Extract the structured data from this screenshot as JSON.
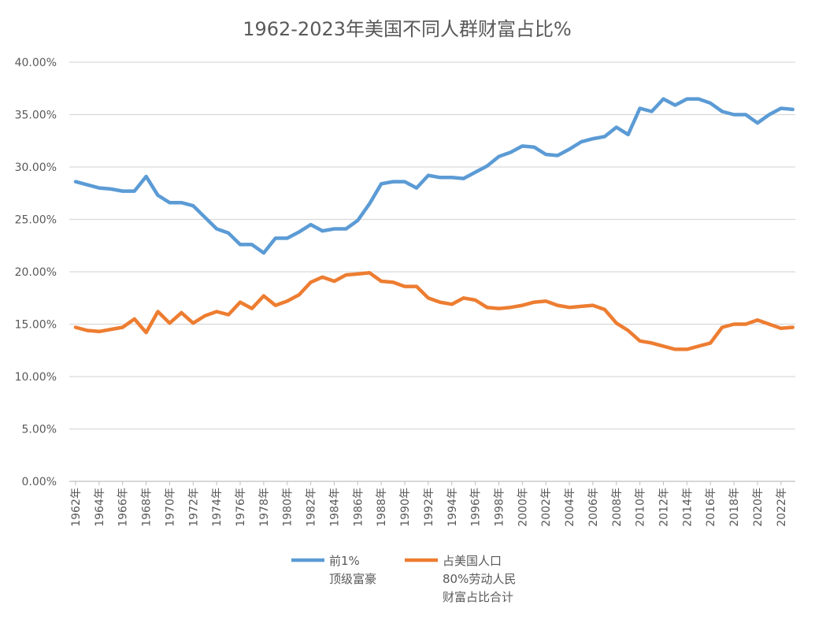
{
  "chart_data": {
    "type": "line",
    "title": "1962-2023年美国不同人群财富占比%",
    "xlabel": "",
    "ylabel": "",
    "ylim": [
      0,
      40
    ],
    "y_ticks": [
      "0.00%",
      "5.00%",
      "10.00%",
      "15.00%",
      "20.00%",
      "25.00%",
      "30.00%",
      "35.00%",
      "40.00%"
    ],
    "x_tick_labels": [
      "1962年",
      "1964年",
      "1966年",
      "1968年",
      "1970年",
      "1972年",
      "1974年",
      "1976年",
      "1978年",
      "1980年",
      "1982年",
      "1984年",
      "1986年",
      "1988年",
      "1990年",
      "1992年",
      "1994年",
      "1996年",
      "1998年",
      "2000年",
      "2002年",
      "2004年",
      "2006年",
      "2008年",
      "2010年",
      "2012年",
      "2014年",
      "2016年",
      "2018年",
      "2020年",
      "2022年"
    ],
    "x": [
      1962,
      1963,
      1964,
      1965,
      1966,
      1967,
      1968,
      1969,
      1970,
      1971,
      1972,
      1973,
      1974,
      1975,
      1976,
      1977,
      1978,
      1979,
      1980,
      1981,
      1982,
      1983,
      1984,
      1985,
      1986,
      1987,
      1988,
      1989,
      1990,
      1991,
      1992,
      1993,
      1994,
      1995,
      1996,
      1997,
      1998,
      1999,
      2000,
      2001,
      2002,
      2003,
      2004,
      2005,
      2006,
      2007,
      2008,
      2009,
      2010,
      2011,
      2012,
      2013,
      2014,
      2015,
      2016,
      2017,
      2018,
      2019,
      2020,
      2021,
      2022,
      2023
    ],
    "grid": true,
    "legend_position": "bottom",
    "series": [
      {
        "name": "前1%\n顶级富豪",
        "color": "#5B9BD5",
        "values": [
          28.6,
          28.3,
          28.0,
          27.9,
          27.7,
          27.7,
          29.1,
          27.3,
          26.6,
          26.6,
          26.3,
          25.2,
          24.1,
          23.7,
          22.6,
          22.6,
          21.8,
          23.2,
          23.2,
          23.8,
          24.5,
          23.9,
          24.1,
          24.1,
          24.9,
          26.5,
          28.4,
          28.6,
          28.6,
          28.0,
          29.2,
          29.0,
          29.0,
          28.9,
          29.5,
          30.1,
          31.0,
          31.4,
          32.0,
          31.9,
          31.2,
          31.1,
          31.7,
          32.4,
          32.7,
          32.9,
          33.8,
          33.1,
          35.6,
          35.3,
          36.5,
          35.9,
          36.5,
          36.5,
          36.1,
          35.3,
          35.0,
          35.0,
          34.2,
          35.0,
          35.6,
          35.5
        ]
      },
      {
        "name": "占美国人口\n80%劳动人民\n财富占比合计",
        "color": "#ED7D31",
        "values": [
          14.7,
          14.4,
          14.3,
          14.5,
          14.7,
          15.5,
          14.2,
          16.2,
          15.1,
          16.1,
          15.1,
          15.8,
          16.2,
          15.9,
          17.1,
          16.5,
          17.7,
          16.8,
          17.2,
          17.8,
          19.0,
          19.5,
          19.1,
          19.7,
          19.8,
          19.9,
          19.1,
          19.0,
          18.6,
          18.6,
          17.5,
          17.1,
          16.9,
          17.5,
          17.3,
          16.6,
          16.5,
          16.6,
          16.8,
          17.1,
          17.2,
          16.8,
          16.6,
          16.7,
          16.8,
          16.4,
          15.1,
          14.4,
          13.4,
          13.2,
          12.9,
          12.6,
          12.6,
          12.9,
          13.2,
          14.7,
          15.0,
          15.0,
          15.4,
          15.0,
          14.6,
          14.7
        ]
      }
    ]
  }
}
